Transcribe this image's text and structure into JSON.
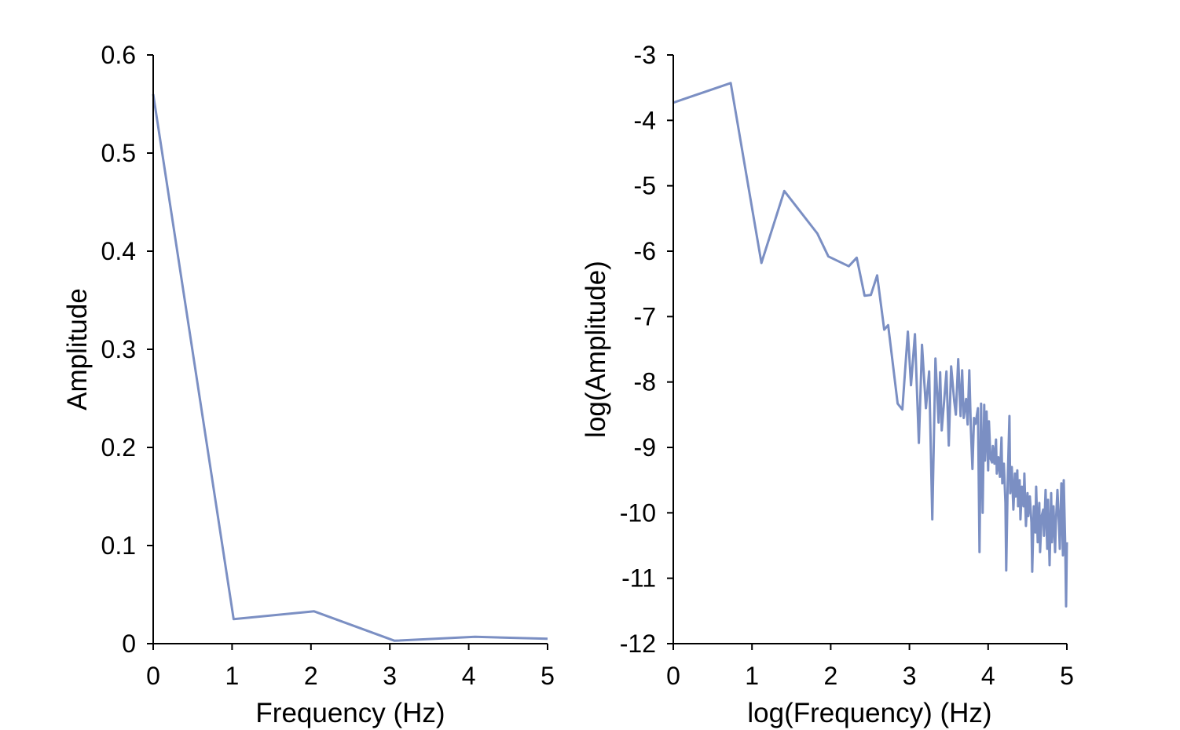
{
  "colors": {
    "line": "#7b8fc3",
    "axis": "#000000",
    "background": "#ffffff"
  },
  "chart_data": [
    {
      "type": "line",
      "title": "",
      "xlabel": "Frequency (Hz)",
      "ylabel": "Amplitude",
      "xlim": [
        0,
        5
      ],
      "ylim": [
        0,
        0.6
      ],
      "xticks": [
        "0",
        "1",
        "2",
        "3",
        "4",
        "5"
      ],
      "yticks": [
        "0",
        "0.1",
        "0.2",
        "0.3",
        "0.4",
        "0.5",
        "0.6"
      ],
      "grid": false,
      "x": [
        0,
        1.02,
        2.04,
        3.06,
        4.08,
        5.0
      ],
      "y": [
        0.56,
        0.025,
        0.033,
        0.003,
        0.007,
        0.005
      ]
    },
    {
      "type": "line",
      "title": "",
      "xlabel": "log(Frequency) (Hz)",
      "ylabel": "log(Amplitude)",
      "xlim": [
        0,
        5
      ],
      "ylim": [
        -12,
        -3
      ],
      "xticks": [
        "0",
        "1",
        "2",
        "3",
        "4",
        "5"
      ],
      "yticks": [
        "-12",
        "-11",
        "-10",
        "-9",
        "-8",
        "-7",
        "-6",
        "-5",
        "-4",
        "-3"
      ],
      "grid": false,
      "x": [
        0.0,
        0.73,
        1.12,
        1.41,
        1.83,
        1.97,
        2.23,
        2.33,
        2.43,
        2.51,
        2.59,
        2.68,
        2.73,
        2.85,
        2.91,
        2.98,
        3.02,
        3.07,
        3.12,
        3.16,
        3.21,
        3.25,
        3.29,
        3.33,
        3.37,
        3.39,
        3.41,
        3.44,
        3.47,
        3.5,
        3.53,
        3.57,
        3.59,
        3.62,
        3.65,
        3.67,
        3.69,
        3.72,
        3.74,
        3.76,
        3.78,
        3.8,
        3.82,
        3.84,
        3.87,
        3.89,
        3.91,
        3.93,
        3.95,
        3.96,
        3.98,
        4.0,
        4.01,
        4.03,
        4.05,
        4.06,
        4.08,
        4.1,
        4.11,
        4.13,
        4.15,
        4.17,
        4.18,
        4.2,
        4.22,
        4.23,
        4.25,
        4.27,
        4.28,
        4.3,
        4.32,
        4.34,
        4.35,
        4.37,
        4.38,
        4.4,
        4.41,
        4.43,
        4.45,
        4.46,
        4.48,
        4.5,
        4.51,
        4.53,
        4.55,
        4.56,
        4.58,
        4.6,
        4.61,
        4.63,
        4.65,
        4.66,
        4.68,
        4.7,
        4.71,
        4.73,
        4.75,
        4.76,
        4.78,
        4.8,
        4.81,
        4.83,
        4.85,
        4.86,
        4.88,
        4.9,
        4.91,
        4.93,
        4.95,
        4.96,
        4.98,
        4.99,
        5.0
      ],
      "y": [
        -3.73,
        -3.43,
        -6.18,
        -5.08,
        -5.73,
        -6.08,
        -6.23,
        -6.1,
        -6.68,
        -6.67,
        -6.37,
        -7.2,
        -7.13,
        -8.33,
        -8.42,
        -7.23,
        -8.05,
        -7.27,
        -8.93,
        -7.43,
        -8.4,
        -7.84,
        -10.1,
        -7.64,
        -8.62,
        -7.85,
        -8.74,
        -8.3,
        -7.84,
        -8.97,
        -7.76,
        -8.3,
        -8.5,
        -7.65,
        -8.52,
        -7.82,
        -8.55,
        -8.26,
        -8.65,
        -7.82,
        -8.72,
        -9.33,
        -8.55,
        -8.64,
        -8.4,
        -10.6,
        -8.33,
        -10.0,
        -8.35,
        -9.2,
        -8.45,
        -9.35,
        -8.6,
        -9.17,
        -9.23,
        -8.98,
        -9.25,
        -8.88,
        -9.4,
        -9.15,
        -9.45,
        -8.85,
        -9.55,
        -9.25,
        -9.85,
        -10.88,
        -9.45,
        -8.52,
        -9.7,
        -9.3,
        -9.95,
        -9.4,
        -9.75,
        -9.35,
        -9.9,
        -9.5,
        -10.1,
        -9.6,
        -9.9,
        -9.4,
        -10.2,
        -9.7,
        -10.05,
        -9.75,
        -10.15,
        -10.9,
        -9.9,
        -10.3,
        -9.6,
        -10.45,
        -9.85,
        -10.6,
        -10.05,
        -9.95,
        -10.35,
        -9.65,
        -10.55,
        -9.8,
        -10.8,
        -9.7,
        -10.45,
        -9.9,
        -10.6,
        -10.15,
        -9.65,
        -10.2,
        -10.55,
        -9.55,
        -10.65,
        -9.5,
        -10.55,
        -11.43,
        -10.45
      ]
    }
  ]
}
